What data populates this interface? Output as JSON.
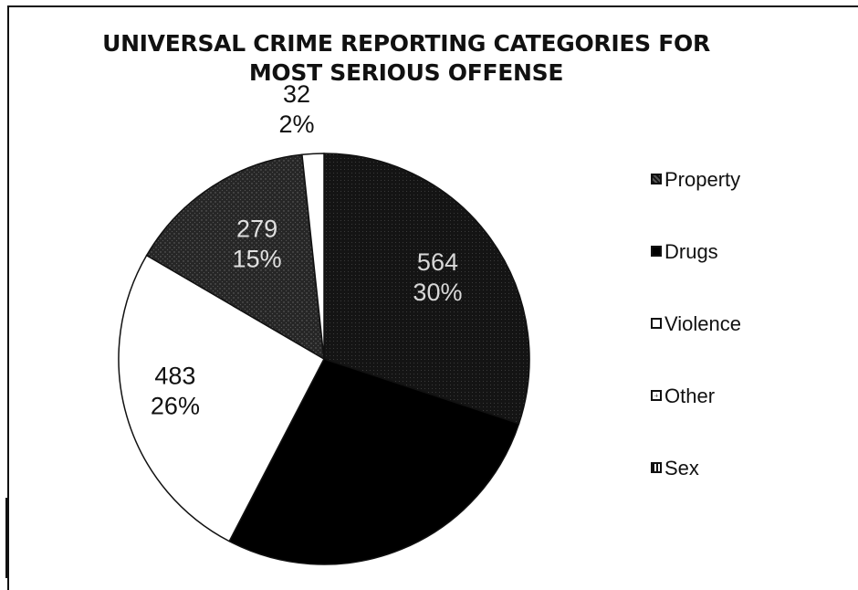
{
  "chart_data": {
    "type": "pie",
    "title": "UNIVERSAL CRIME REPORTING CATEGORIES FOR MOST SERIOUS OFFENSE",
    "title_lines": [
      "UNIVERSAL CRIME REPORTING CATEGORIES FOR",
      "MOST SERIOUS OFFENSE"
    ],
    "legend_position": "right",
    "slices": [
      {
        "name": "Property",
        "value": 564,
        "percent": "30%",
        "fill": "#161616",
        "label_color": "#d8d8d8"
      },
      {
        "name": "Drugs",
        "value": 516,
        "percent": "",
        "fill": "#000000",
        "label_color": "#ffffff"
      },
      {
        "name": "Violence",
        "value": 483,
        "percent": "26%",
        "fill": "#ffffff",
        "label_color": "#111111"
      },
      {
        "name": "Sex",
        "value": 279,
        "percent": "15%",
        "fill": "#2a2a2a",
        "label_color": "#e0e0e0"
      },
      {
        "name": "Other",
        "value": 32,
        "percent": "2%",
        "fill": "#ffffff",
        "label_color": "#111111"
      }
    ],
    "legend": [
      "Property",
      "Drugs",
      "Violence",
      "Other",
      "Sex"
    ]
  }
}
